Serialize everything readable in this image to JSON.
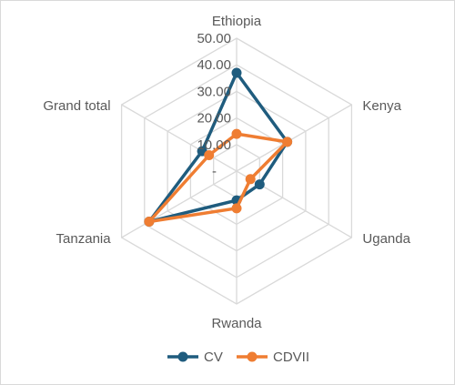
{
  "chart_data": {
    "type": "radar",
    "title": "",
    "categories": [
      "Ethiopia",
      "Kenya",
      "Uganda",
      "Rwanda",
      "Tanzania",
      "Grand total"
    ],
    "axis": {
      "min": 0,
      "max": 50,
      "ticks": [
        0,
        10,
        20,
        30,
        40,
        50
      ],
      "tick_labels": [
        "-",
        "10.00",
        "20.00",
        "30.00",
        "40.00",
        "50.00"
      ],
      "grid": true
    },
    "series": [
      {
        "name": "CV",
        "color": "#1f5c7e",
        "values": [
          37,
          22,
          10,
          11,
          38,
          15
        ]
      },
      {
        "name": "CDVII",
        "color": "#ef7d32",
        "values": [
          14,
          22,
          6,
          14,
          38,
          12
        ]
      }
    ],
    "legend": {
      "position": "bottom"
    }
  }
}
